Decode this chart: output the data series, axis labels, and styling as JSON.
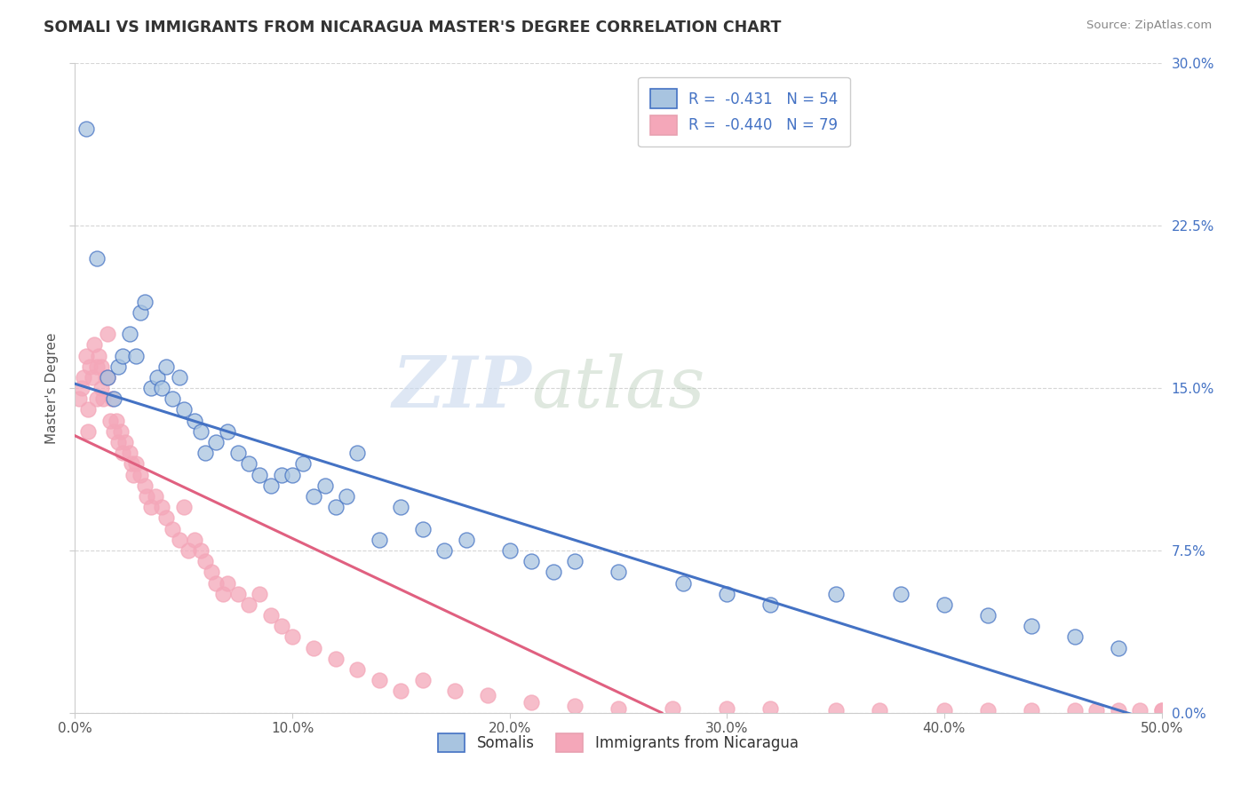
{
  "title": "SOMALI VS IMMIGRANTS FROM NICARAGUA MASTER'S DEGREE CORRELATION CHART",
  "source": "Source: ZipAtlas.com",
  "xlabel_bottom": [
    "Somalis",
    "Immigrants from Nicaragua"
  ],
  "ylabel": "Master's Degree",
  "xlim": [
    0.0,
    0.5
  ],
  "ylim": [
    0.0,
    0.3
  ],
  "xticks": [
    0.0,
    0.1,
    0.2,
    0.3,
    0.4,
    0.5
  ],
  "yticks": [
    0.0,
    0.075,
    0.15,
    0.225,
    0.3
  ],
  "xticklabels": [
    "0.0%",
    "10.0%",
    "20.0%",
    "30.0%",
    "40.0%",
    "50.0%"
  ],
  "yticklabels_right": [
    "0.0%",
    "7.5%",
    "15.0%",
    "22.5%",
    "30.0%"
  ],
  "legend_r1": "R =  -0.431   N = 54",
  "legend_r2": "R =  -0.440   N = 79",
  "somali_color": "#a8c4e0",
  "nicaragua_color": "#f4a7b9",
  "somali_line_color": "#4472c4",
  "nicaragua_line_color": "#e06080",
  "background_color": "#ffffff",
  "somali_line_x0": 0.0,
  "somali_line_y0": 0.152,
  "somali_line_x1": 0.5,
  "somali_line_y1": -0.005,
  "nicaragua_line_x0": 0.0,
  "nicaragua_line_y0": 0.128,
  "nicaragua_line_x1": 0.27,
  "nicaragua_line_y1": 0.0,
  "somali_x": [
    0.005,
    0.01,
    0.015,
    0.018,
    0.02,
    0.022,
    0.025,
    0.028,
    0.03,
    0.032,
    0.035,
    0.038,
    0.04,
    0.042,
    0.045,
    0.048,
    0.05,
    0.055,
    0.058,
    0.06,
    0.065,
    0.07,
    0.075,
    0.08,
    0.085,
    0.09,
    0.095,
    0.1,
    0.105,
    0.11,
    0.115,
    0.12,
    0.125,
    0.13,
    0.14,
    0.15,
    0.16,
    0.17,
    0.18,
    0.2,
    0.21,
    0.22,
    0.23,
    0.25,
    0.28,
    0.3,
    0.32,
    0.35,
    0.38,
    0.4,
    0.42,
    0.44,
    0.46,
    0.48
  ],
  "somali_y": [
    0.27,
    0.21,
    0.155,
    0.145,
    0.16,
    0.165,
    0.175,
    0.165,
    0.185,
    0.19,
    0.15,
    0.155,
    0.15,
    0.16,
    0.145,
    0.155,
    0.14,
    0.135,
    0.13,
    0.12,
    0.125,
    0.13,
    0.12,
    0.115,
    0.11,
    0.105,
    0.11,
    0.11,
    0.115,
    0.1,
    0.105,
    0.095,
    0.1,
    0.12,
    0.08,
    0.095,
    0.085,
    0.075,
    0.08,
    0.075,
    0.07,
    0.065,
    0.07,
    0.065,
    0.06,
    0.055,
    0.05,
    0.055,
    0.055,
    0.05,
    0.045,
    0.04,
    0.035,
    0.03
  ],
  "nicaragua_x": [
    0.002,
    0.003,
    0.004,
    0.005,
    0.006,
    0.006,
    0.007,
    0.008,
    0.009,
    0.01,
    0.01,
    0.011,
    0.012,
    0.012,
    0.013,
    0.014,
    0.015,
    0.015,
    0.016,
    0.017,
    0.018,
    0.019,
    0.02,
    0.021,
    0.022,
    0.023,
    0.025,
    0.026,
    0.027,
    0.028,
    0.03,
    0.032,
    0.033,
    0.035,
    0.037,
    0.04,
    0.042,
    0.045,
    0.048,
    0.05,
    0.052,
    0.055,
    0.058,
    0.06,
    0.063,
    0.065,
    0.068,
    0.07,
    0.075,
    0.08,
    0.085,
    0.09,
    0.095,
    0.1,
    0.11,
    0.12,
    0.13,
    0.14,
    0.15,
    0.16,
    0.175,
    0.19,
    0.21,
    0.23,
    0.25,
    0.275,
    0.3,
    0.32,
    0.35,
    0.37,
    0.4,
    0.42,
    0.44,
    0.46,
    0.47,
    0.48,
    0.49,
    0.5,
    0.5
  ],
  "nicaragua_y": [
    0.145,
    0.15,
    0.155,
    0.165,
    0.13,
    0.14,
    0.16,
    0.155,
    0.17,
    0.145,
    0.16,
    0.165,
    0.15,
    0.16,
    0.145,
    0.155,
    0.175,
    0.155,
    0.135,
    0.145,
    0.13,
    0.135,
    0.125,
    0.13,
    0.12,
    0.125,
    0.12,
    0.115,
    0.11,
    0.115,
    0.11,
    0.105,
    0.1,
    0.095,
    0.1,
    0.095,
    0.09,
    0.085,
    0.08,
    0.095,
    0.075,
    0.08,
    0.075,
    0.07,
    0.065,
    0.06,
    0.055,
    0.06,
    0.055,
    0.05,
    0.055,
    0.045,
    0.04,
    0.035,
    0.03,
    0.025,
    0.02,
    0.015,
    0.01,
    0.015,
    0.01,
    0.008,
    0.005,
    0.003,
    0.002,
    0.002,
    0.002,
    0.002,
    0.001,
    0.001,
    0.001,
    0.001,
    0.001,
    0.001,
    0.001,
    0.001,
    0.001,
    0.001,
    0.001
  ]
}
